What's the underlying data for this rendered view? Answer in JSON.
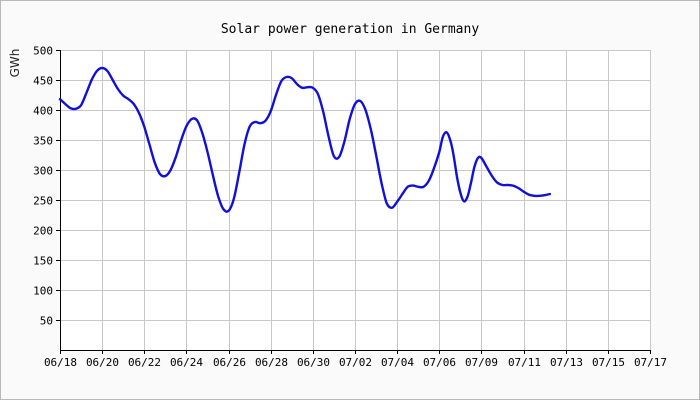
{
  "chart_data": {
    "type": "line",
    "title": "Solar power generation in Germany",
    "xlabel": "",
    "ylabel": "GWh",
    "x_ticks": [
      "06/18",
      "06/20",
      "06/22",
      "06/24",
      "06/26",
      "06/28",
      "06/30",
      "07/02",
      "07/04",
      "07/06",
      "07/09",
      "07/11",
      "07/13",
      "07/15",
      "07/17"
    ],
    "y_ticks": [
      50,
      100,
      150,
      200,
      250,
      300,
      350,
      400,
      450,
      500
    ],
    "ylim": [
      0,
      500
    ],
    "grid": true,
    "colors": {
      "line": "#1010d8",
      "grid": "#c8c8c8",
      "axis": "#000000",
      "background": "#ffffff"
    },
    "series": [
      {
        "name": "",
        "points": [
          [
            "2023-06-18 00:00",
            418
          ],
          [
            "2023-06-18 06:00",
            410
          ],
          [
            "2023-06-18 12:00",
            403
          ],
          [
            "2023-06-18 18:00",
            402
          ],
          [
            "2023-06-19 00:00",
            408
          ],
          [
            "2023-06-19 06:00",
            428
          ],
          [
            "2023-06-19 12:00",
            450
          ],
          [
            "2023-06-19 18:00",
            465
          ],
          [
            "2023-06-20 00:00",
            470
          ],
          [
            "2023-06-20 06:00",
            465
          ],
          [
            "2023-06-20 12:00",
            450
          ],
          [
            "2023-06-20 18:00",
            435
          ],
          [
            "2023-06-21 00:00",
            424
          ],
          [
            "2023-06-21 06:00",
            418
          ],
          [
            "2023-06-21 12:00",
            410
          ],
          [
            "2023-06-21 18:00",
            395
          ],
          [
            "2023-06-22 00:00",
            372
          ],
          [
            "2023-06-22 06:00",
            342
          ],
          [
            "2023-06-22 12:00",
            312
          ],
          [
            "2023-06-22 18:00",
            293
          ],
          [
            "2023-06-23 00:00",
            290
          ],
          [
            "2023-06-23 06:00",
            300
          ],
          [
            "2023-06-23 12:00",
            322
          ],
          [
            "2023-06-23 18:00",
            350
          ],
          [
            "2023-06-24 00:00",
            373
          ],
          [
            "2023-06-24 06:00",
            385
          ],
          [
            "2023-06-24 12:00",
            383
          ],
          [
            "2023-06-24 18:00",
            362
          ],
          [
            "2023-06-25 00:00",
            330
          ],
          [
            "2023-06-25 06:00",
            292
          ],
          [
            "2023-06-25 12:00",
            257
          ],
          [
            "2023-06-25 18:00",
            235
          ],
          [
            "2023-06-26 00:00",
            232
          ],
          [
            "2023-06-26 06:00",
            252
          ],
          [
            "2023-06-26 12:00",
            295
          ],
          [
            "2023-06-26 18:00",
            342
          ],
          [
            "2023-06-27 00:00",
            372
          ],
          [
            "2023-06-27 06:00",
            380
          ],
          [
            "2023-06-27 12:00",
            378
          ],
          [
            "2023-06-27 18:00",
            382
          ],
          [
            "2023-06-28 00:00",
            398
          ],
          [
            "2023-06-28 06:00",
            425
          ],
          [
            "2023-06-28 12:00",
            448
          ],
          [
            "2023-06-28 18:00",
            455
          ],
          [
            "2023-06-29 00:00",
            453
          ],
          [
            "2023-06-29 06:00",
            443
          ],
          [
            "2023-06-29 12:00",
            437
          ],
          [
            "2023-06-29 18:00",
            438
          ],
          [
            "2023-06-30 00:00",
            437
          ],
          [
            "2023-06-30 06:00",
            426
          ],
          [
            "2023-06-30 12:00",
            396
          ],
          [
            "2023-06-30 18:00",
            355
          ],
          [
            "2023-07-01 00:00",
            323
          ],
          [
            "2023-07-01 06:00",
            322
          ],
          [
            "2023-07-01 12:00",
            348
          ],
          [
            "2023-07-01 18:00",
            385
          ],
          [
            "2023-07-02 00:00",
            410
          ],
          [
            "2023-07-02 06:00",
            415
          ],
          [
            "2023-07-02 12:00",
            400
          ],
          [
            "2023-07-02 18:00",
            368
          ],
          [
            "2023-07-03 00:00",
            325
          ],
          [
            "2023-07-03 06:00",
            280
          ],
          [
            "2023-07-03 12:00",
            245
          ],
          [
            "2023-07-03 18:00",
            237
          ],
          [
            "2023-07-04 00:00",
            247
          ],
          [
            "2023-07-04 06:00",
            260
          ],
          [
            "2023-07-04 12:00",
            272
          ],
          [
            "2023-07-04 18:00",
            274
          ],
          [
            "2023-07-05 00:00",
            272
          ],
          [
            "2023-07-05 06:00",
            272
          ],
          [
            "2023-07-05 12:00",
            282
          ],
          [
            "2023-07-05 18:00",
            303
          ],
          [
            "2023-07-06 00:00",
            330
          ],
          [
            "2023-07-06 06:00",
            355
          ],
          [
            "2023-07-06 12:00",
            363
          ],
          [
            "2023-07-06 18:00",
            352
          ],
          [
            "2023-07-07 00:00",
            327
          ],
          [
            "2023-07-07 06:00",
            290
          ],
          [
            "2023-07-07 12:00",
            262
          ],
          [
            "2023-07-07 18:00",
            248
          ],
          [
            "2023-07-08 00:00",
            255
          ],
          [
            "2023-07-08 06:00",
            278
          ],
          [
            "2023-07-08 12:00",
            305
          ],
          [
            "2023-07-08 18:00",
            320
          ],
          [
            "2023-07-09 00:00",
            320
          ],
          [
            "2023-07-09 06:00",
            305
          ],
          [
            "2023-07-09 12:00",
            290
          ],
          [
            "2023-07-09 18:00",
            279
          ],
          [
            "2023-07-10 00:00",
            275
          ],
          [
            "2023-07-10 06:00",
            275
          ],
          [
            "2023-07-10 12:00",
            274
          ],
          [
            "2023-07-10 18:00",
            270
          ],
          [
            "2023-07-11 00:00",
            264
          ],
          [
            "2023-07-11 06:00",
            259
          ],
          [
            "2023-07-11 12:00",
            257
          ],
          [
            "2023-07-11 18:00",
            257
          ],
          [
            "2023-07-12 00:00",
            258
          ],
          [
            "2023-07-12 06:00",
            260
          ]
        ]
      }
    ]
  }
}
